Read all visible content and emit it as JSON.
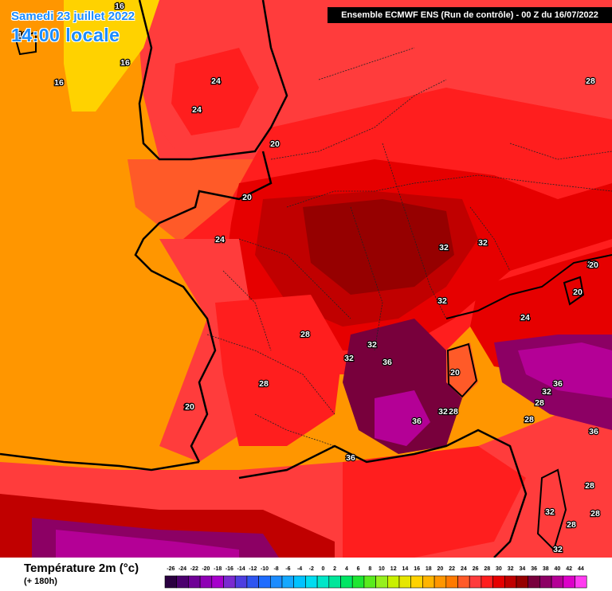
{
  "header": {
    "date": "Samedi 23 juillet 2022",
    "local_time": "14:00 locale",
    "model_run": "Ensemble ECMWF ENS  (Run de contrôle)  -  00 Z du 16/07/2022"
  },
  "legend": {
    "title": "Température 2m (°c)",
    "lead_time": "(+ 180h)",
    "ticks": [
      "-26",
      "-24",
      "-22",
      "-20",
      "-18",
      "-16",
      "-14",
      "-12",
      "-10",
      "-8",
      "-6",
      "-4",
      "-2",
      "0",
      "2",
      "4",
      "6",
      "8",
      "10",
      "12",
      "14",
      "16",
      "18",
      "20",
      "22",
      "24",
      "26",
      "28",
      "30",
      "32",
      "34",
      "36",
      "38",
      "40",
      "42",
      "44"
    ],
    "colors": [
      "#2a0040",
      "#4b006e",
      "#6e0096",
      "#8e00b4",
      "#a600cc",
      "#7a2ad0",
      "#4d3ee0",
      "#2f55f0",
      "#1e6cff",
      "#1c8cff",
      "#14a8ff",
      "#00c2ff",
      "#00dcf0",
      "#00e6c8",
      "#00e69a",
      "#00e664",
      "#1ee632",
      "#5aeb1e",
      "#96f01e",
      "#c8f000",
      "#e6e600",
      "#ffd200",
      "#ffb400",
      "#ff9600",
      "#ff7a00",
      "#ff5a28",
      "#ff3c3c",
      "#ff1e1e",
      "#e60000",
      "#c00000",
      "#960000",
      "#78003c",
      "#8c0064",
      "#b40096",
      "#dc00c8",
      "#ff3cf0"
    ]
  },
  "map_labels": [
    {
      "text": "16"
    },
    {
      "text": "16"
    },
    {
      "text": "16"
    },
    {
      "text": "16"
    },
    {
      "text": "24"
    },
    {
      "text": "24"
    },
    {
      "text": "20"
    },
    {
      "text": "20"
    },
    {
      "text": "24"
    },
    {
      "text": "28"
    },
    {
      "text": "28"
    },
    {
      "text": "20"
    },
    {
      "text": "32"
    },
    {
      "text": "32"
    },
    {
      "text": "32"
    },
    {
      "text": "28"
    },
    {
      "text": "32"
    },
    {
      "text": "32"
    },
    {
      "text": "36"
    },
    {
      "text": "28"
    },
    {
      "text": "20"
    },
    {
      "text": "20"
    },
    {
      "text": "20"
    },
    {
      "text": "24"
    },
    {
      "text": "20"
    },
    {
      "text": "36"
    },
    {
      "text": "32"
    },
    {
      "text": "28"
    },
    {
      "text": "28"
    },
    {
      "text": "36"
    },
    {
      "text": "32"
    },
    {
      "text": "28"
    },
    {
      "text": "36"
    },
    {
      "text": "28"
    },
    {
      "text": "28"
    },
    {
      "text": "32"
    },
    {
      "text": "28"
    },
    {
      "text": "28"
    },
    {
      "text": "32"
    },
    {
      "text": "36"
    },
    {
      "text": "36"
    },
    {
      "text": "36"
    },
    {
      "text": "36"
    }
  ]
}
